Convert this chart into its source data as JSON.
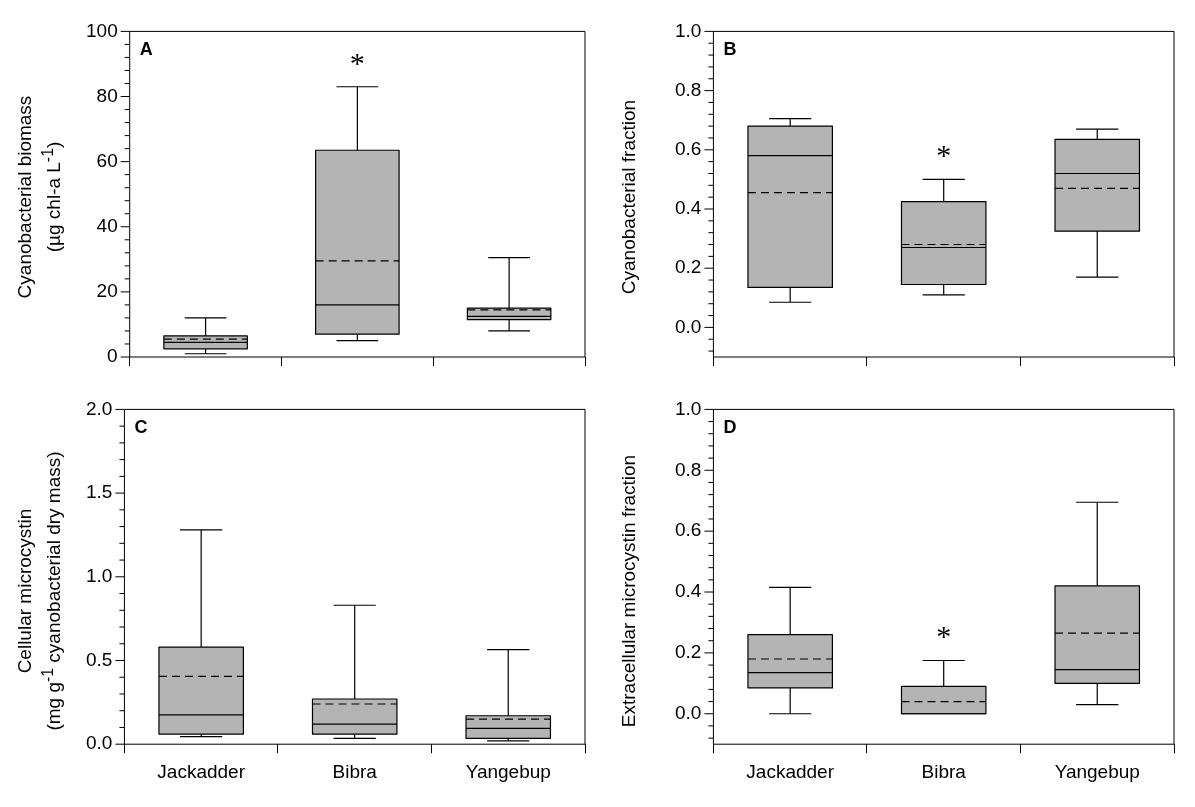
{
  "chart_data": [
    {
      "type": "box",
      "ylabel": "Cyanobacterial biomass\n(µg chl-a L$^{-1}$)",
      "categories": [
        "Jackadder",
        "Bibra",
        "Yangebup"
      ],
      "color": "#b4b4b4",
      "tick_labels": "y",
      "boxes": [
        {
          "low": 1,
          "q1": 2.5,
          "median": 4.5,
          "q3": 6.5,
          "high": 12,
          "mean": 5.5
        },
        {
          "low": 5,
          "q1": 7,
          "median": 16,
          "q3": 63.5,
          "high": 83,
          "mean": 29.5
        },
        {
          "low": 8,
          "q1": 11.5,
          "median": 12.5,
          "q3": 15,
          "high": 30.5,
          "mean": 14.5
        }
      ],
      "ylim": [
        0,
        100
      ],
      "yticks": [
        0,
        {
          "value": 4,
          "label": null
        },
        {
          "value": 8,
          "label": null
        },
        {
          "value": 12,
          "label": null
        },
        {
          "value": 16,
          "label": null
        },
        20,
        {
          "value": 24,
          "label": null
        },
        {
          "value": 28,
          "label": null
        },
        {
          "value": 32,
          "label": null
        },
        {
          "value": 36,
          "label": null
        },
        40,
        {
          "value": 44,
          "label": null
        },
        {
          "value": 48,
          "label": null
        },
        {
          "value": 52,
          "label": null
        },
        {
          "value": 56,
          "label": null
        },
        60,
        {
          "value": 64,
          "label": null
        },
        {
          "value": 68,
          "label": null
        },
        {
          "value": 72,
          "label": null
        },
        {
          "value": 76,
          "label": null
        },
        80,
        {
          "value": 84,
          "label": null
        },
        {
          "value": 88,
          "label": null
        },
        {
          "value": 92,
          "label": null
        },
        {
          "value": 96,
          "label": null
        },
        100
      ],
      "annotations": [
        "A",
        {
          "text": "*",
          "x": "Bibra",
          "y": 83
        }
      ]
    },
    {
      "type": "box",
      "ylabel": "Cyanobacterial fraction",
      "categories": [
        "Jackadder",
        "Bibra",
        "Yangebup"
      ],
      "color": "#b4b4b4",
      "tick_labels": "y",
      "boxes": [
        {
          "low": 0.085,
          "q1": 0.135,
          "median": 0.58,
          "q3": 0.68,
          "high": 0.705,
          "mean": 0.455
        },
        {
          "low": 0.11,
          "q1": 0.145,
          "median": 0.27,
          "q3": 0.425,
          "high": 0.5,
          "mean": 0.28
        },
        {
          "low": 0.17,
          "q1": 0.325,
          "median": 0.52,
          "q3": 0.635,
          "high": 0.67,
          "mean": 0.47
        }
      ],
      "ylim": [
        -0.1,
        1.0
      ],
      "yticks": [
        {
          "value": -0.08,
          "label": null
        },
        {
          "value": -0.04,
          "label": null
        },
        {
          "value": 0,
          "label": "0.0"
        },
        {
          "value": 0.04,
          "label": null
        },
        {
          "value": 0.08,
          "label": null
        },
        {
          "value": 0.12,
          "label": null
        },
        {
          "value": 0.16,
          "label": null
        },
        {
          "value": 0.2,
          "label": "0.2"
        },
        {
          "value": 0.24,
          "label": null
        },
        {
          "value": 0.28,
          "label": null
        },
        {
          "value": 0.32,
          "label": null
        },
        {
          "value": 0.36,
          "label": null
        },
        {
          "value": 0.4,
          "label": "0.4"
        },
        {
          "value": 0.44,
          "label": null
        },
        {
          "value": 0.48,
          "label": null
        },
        {
          "value": 0.52,
          "label": null
        },
        {
          "value": 0.56,
          "label": null
        },
        {
          "value": 0.6,
          "label": "0.6"
        },
        {
          "value": 0.64,
          "label": null
        },
        {
          "value": 0.68,
          "label": null
        },
        {
          "value": 0.72,
          "label": null
        },
        {
          "value": 0.76,
          "label": null
        },
        {
          "value": 0.8,
          "label": "0.8"
        },
        {
          "value": 0.84,
          "label": null
        },
        {
          "value": 0.88,
          "label": null
        },
        {
          "value": 0.92,
          "label": null
        },
        {
          "value": 0.96,
          "label": null
        },
        {
          "value": 1.0,
          "label": "1.0"
        }
      ],
      "annotations": [
        "B",
        {
          "text": "*",
          "x": "Bibra",
          "y": 0.5
        }
      ]
    },
    {
      "type": "box",
      "ylabel": "Cellular microcystin\n(mg g$^{-1}$ cyanobacterial dry mass)",
      "categories": [
        "Jackadder",
        "Bibra",
        "Yangebup"
      ],
      "color": "#b4b4b4",
      "boxes": [
        {
          "low": 0.045,
          "q1": 0.06,
          "median": 0.175,
          "q3": 0.58,
          "high": 1.28,
          "mean": 0.405
        },
        {
          "low": 0.035,
          "q1": 0.06,
          "median": 0.12,
          "q3": 0.27,
          "high": 0.83,
          "mean": 0.24
        },
        {
          "low": 0.02,
          "q1": 0.035,
          "median": 0.095,
          "q3": 0.17,
          "high": 0.565,
          "mean": 0.15
        }
      ],
      "ylim": [
        0,
        2.0
      ],
      "yticks": [
        {
          "value": 0,
          "label": "0.0"
        },
        {
          "value": 0.1,
          "label": null
        },
        {
          "value": 0.2,
          "label": null
        },
        {
          "value": 0.3,
          "label": null
        },
        {
          "value": 0.4,
          "label": null
        },
        {
          "value": 0.5,
          "label": "0.5"
        },
        {
          "value": 0.6,
          "label": null
        },
        {
          "value": 0.7,
          "label": null
        },
        {
          "value": 0.8,
          "label": null
        },
        {
          "value": 0.9,
          "label": null
        },
        {
          "value": 1.0,
          "label": "1.0"
        },
        {
          "value": 1.1,
          "label": null
        },
        {
          "value": 1.2,
          "label": null
        },
        {
          "value": 1.3,
          "label": null
        },
        {
          "value": 1.4,
          "label": null
        },
        {
          "value": 1.5,
          "label": "1.5"
        },
        {
          "value": 1.6,
          "label": null
        },
        {
          "value": 1.7,
          "label": null
        },
        {
          "value": 1.8,
          "label": null
        },
        {
          "value": 1.9,
          "label": null
        },
        {
          "value": 2.0,
          "label": "2.0"
        }
      ],
      "annotations": [
        "C"
      ]
    },
    {
      "type": "box",
      "ylabel": "Extracellular microcystin fraction",
      "categories": [
        "Jackadder",
        "Bibra",
        "Yangebup"
      ],
      "color": "#b4b4b4",
      "boxes": [
        {
          "low": 0.0,
          "q1": 0.085,
          "median": 0.135,
          "q3": 0.26,
          "high": 0.415,
          "mean": 0.18
        },
        {
          "low": 0.0,
          "q1": 0.0,
          "median": 0.0,
          "q3": 0.09,
          "high": 0.175,
          "mean": 0.04
        },
        {
          "low": 0.03,
          "q1": 0.1,
          "median": 0.145,
          "q3": 0.42,
          "high": 0.695,
          "mean": 0.265
        }
      ],
      "ylim": [
        -0.1,
        1.0
      ],
      "yticks": [
        {
          "value": -0.08,
          "label": null
        },
        {
          "value": -0.04,
          "label": null
        },
        {
          "value": 0,
          "label": "0.0"
        },
        {
          "value": 0.04,
          "label": null
        },
        {
          "value": 0.08,
          "label": null
        },
        {
          "value": 0.12,
          "label": null
        },
        {
          "value": 0.16,
          "label": null
        },
        {
          "value": 0.2,
          "label": "0.2"
        },
        {
          "value": 0.24,
          "label": null
        },
        {
          "value": 0.28,
          "label": null
        },
        {
          "value": 0.32,
          "label": null
        },
        {
          "value": 0.36,
          "label": null
        },
        {
          "value": 0.4,
          "label": "0.4"
        },
        {
          "value": 0.44,
          "label": null
        },
        {
          "value": 0.48,
          "label": null
        },
        {
          "value": 0.52,
          "label": null
        },
        {
          "value": 0.56,
          "label": null
        },
        {
          "value": 0.6,
          "label": "0.6"
        },
        {
          "value": 0.64,
          "label": null
        },
        {
          "value": 0.68,
          "label": null
        },
        {
          "value": 0.72,
          "label": null
        },
        {
          "value": 0.76,
          "label": null
        },
        {
          "value": 0.8,
          "label": "0.8"
        },
        {
          "value": 0.84,
          "label": null
        },
        {
          "value": 0.88,
          "label": null
        },
        {
          "value": 0.92,
          "label": null
        },
        {
          "value": 0.96,
          "label": null
        },
        {
          "value": 1.0,
          "label": "1.0"
        }
      ],
      "annotations": [
        "D",
        {
          "text": "*",
          "x": "Bibra",
          "y": 0.175
        }
      ]
    }
  ]
}
